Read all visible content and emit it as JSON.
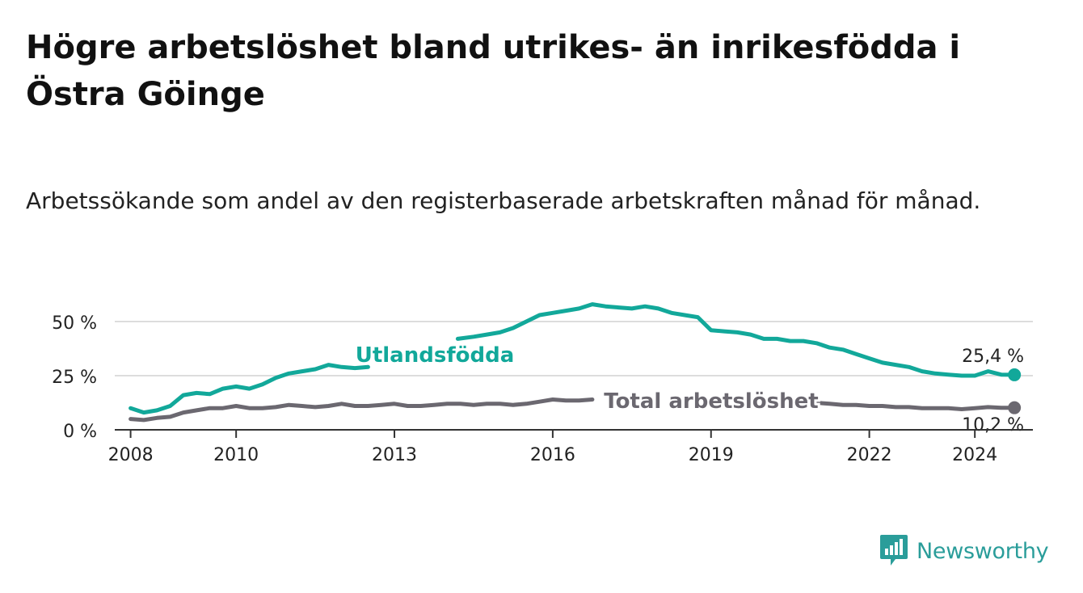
{
  "title": "Högre arbetslöshet bland utrikes- än inrikesfödda i Östra Göinge",
  "subtitle": "Arbetssökande som andel av den registerbaserade arbetskraften månad för månad.",
  "brand": "Newsworthy",
  "colors": {
    "utlandsfodda": "#12a89a",
    "total": "#6b6870",
    "grid": "#dddddd",
    "axis": "#333333",
    "brand": "#2a9d9a"
  },
  "chart_data": {
    "type": "line",
    "title": "Högre arbetslöshet bland utrikes- än inrikesfödda i Östra Göinge",
    "xlabel": "",
    "ylabel": "",
    "xlim": [
      2007.7,
      2025.1
    ],
    "ylim": [
      0,
      60
    ],
    "y_ticks": [
      {
        "value": 0,
        "label": "0 %"
      },
      {
        "value": 25,
        "label": "25 %"
      },
      {
        "value": 50,
        "label": "50 %"
      }
    ],
    "x_ticks": [
      {
        "value": 2008,
        "label": "2008"
      },
      {
        "value": 2010,
        "label": "2010"
      },
      {
        "value": 2013,
        "label": "2013"
      },
      {
        "value": 2016,
        "label": "2016"
      },
      {
        "value": 2019,
        "label": "2019"
      },
      {
        "value": 2022,
        "label": "2022"
      },
      {
        "value": 2024,
        "label": "2024"
      }
    ],
    "series": [
      {
        "name": "Utlandsfödda",
        "label": "Utlandsfödda",
        "end_label": "25,4 %",
        "x": [
          2008.0,
          2008.25,
          2008.5,
          2008.75,
          2009.0,
          2009.25,
          2009.5,
          2009.75,
          2010.0,
          2010.25,
          2010.5,
          2010.75,
          2011.0,
          2011.25,
          2011.5,
          2011.75,
          2012.0,
          2012.25,
          2012.5,
          2014.2,
          2014.5,
          2014.75,
          2015.0,
          2015.25,
          2015.5,
          2015.75,
          2016.0,
          2016.25,
          2016.5,
          2016.75,
          2017.0,
          2017.25,
          2017.5,
          2017.75,
          2018.0,
          2018.25,
          2018.5,
          2018.75,
          2019.0,
          2019.25,
          2019.5,
          2019.75,
          2020.0,
          2020.25,
          2020.5,
          2020.75,
          2021.0,
          2021.25,
          2021.5,
          2021.75,
          2022.0,
          2022.25,
          2022.5,
          2022.75,
          2023.0,
          2023.25,
          2023.5,
          2023.75,
          2024.0,
          2024.25,
          2024.5,
          2024.75
        ],
        "values": [
          10,
          8,
          9,
          11,
          16,
          17,
          16.5,
          19,
          20,
          19,
          21,
          24,
          26,
          27,
          28,
          30,
          29,
          28.5,
          29,
          42,
          43,
          44,
          45,
          47,
          50,
          53,
          54,
          55,
          56,
          58,
          57,
          56.5,
          56,
          57,
          56,
          54,
          53,
          52,
          46,
          45.5,
          45,
          44,
          42,
          42,
          41,
          41,
          40,
          38,
          37,
          35,
          33,
          31,
          30,
          29,
          27,
          26,
          25.5,
          25,
          25,
          27,
          25.5,
          25.4
        ],
        "color": "#12a89a"
      },
      {
        "name": "Total arbetslöshet",
        "label": "Total arbetslöshet",
        "end_label": "10,2 %",
        "x": [
          2008.0,
          2008.25,
          2008.5,
          2008.75,
          2009.0,
          2009.25,
          2009.5,
          2009.75,
          2010.0,
          2010.25,
          2010.5,
          2010.75,
          2011.0,
          2011.25,
          2011.5,
          2011.75,
          2012.0,
          2012.25,
          2012.5,
          2012.75,
          2013.0,
          2013.25,
          2013.5,
          2013.75,
          2014.0,
          2014.25,
          2014.5,
          2014.75,
          2015.0,
          2015.25,
          2015.5,
          2015.75,
          2016.0,
          2016.25,
          2016.5,
          2016.75,
          2021.0,
          2021.25,
          2021.5,
          2021.75,
          2022.0,
          2022.25,
          2022.5,
          2022.75,
          2023.0,
          2023.25,
          2023.5,
          2023.75,
          2024.0,
          2024.25,
          2024.5,
          2024.75
        ],
        "values": [
          5,
          4.5,
          5.5,
          6,
          8,
          9,
          10,
          10,
          11,
          10,
          10,
          10.5,
          11.5,
          11,
          10.5,
          11,
          12,
          11,
          11,
          11.5,
          12,
          11,
          11,
          11.5,
          12,
          12,
          11.5,
          12,
          12,
          11.5,
          12,
          13,
          14,
          13.5,
          13.5,
          14,
          12.5,
          12,
          11.5,
          11.5,
          11,
          11,
          10.5,
          10.5,
          10,
          10,
          10,
          9.5,
          10,
          10.5,
          10.2,
          10.2
        ],
        "color": "#6b6870"
      }
    ]
  }
}
